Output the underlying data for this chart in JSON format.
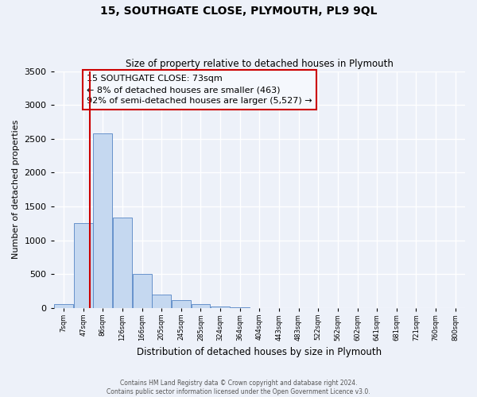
{
  "title": "15, SOUTHGATE CLOSE, PLYMOUTH, PL9 9QL",
  "subtitle": "Size of property relative to detached houses in Plymouth",
  "xlabel": "Distribution of detached houses by size in Plymouth",
  "ylabel": "Number of detached properties",
  "bin_labels": [
    "7sqm",
    "47sqm",
    "86sqm",
    "126sqm",
    "166sqm",
    "205sqm",
    "245sqm",
    "285sqm",
    "324sqm",
    "364sqm",
    "404sqm",
    "443sqm",
    "483sqm",
    "522sqm",
    "562sqm",
    "602sqm",
    "641sqm",
    "681sqm",
    "721sqm",
    "760sqm",
    "800sqm"
  ],
  "bar_heights": [
    55,
    1250,
    2580,
    1340,
    500,
    200,
    110,
    55,
    20,
    5,
    2,
    1,
    0,
    0,
    0,
    0,
    0,
    0,
    0,
    0,
    0
  ],
  "bar_color": "#c5d8f0",
  "bar_edgecolor": "#5585c5",
  "property_line_x": 1.85,
  "property_line_color": "#cc0000",
  "annotation_text": "15 SOUTHGATE CLOSE: 73sqm\n← 8% of detached houses are smaller (463)\n92% of semi-detached houses are larger (5,527) →",
  "annotation_box_edgecolor": "#cc0000",
  "annotation_box_facecolor": "#f5f8fd",
  "ylim": [
    0,
    3500
  ],
  "yticks": [
    0,
    500,
    1000,
    1500,
    2000,
    2500,
    3000,
    3500
  ],
  "footer_line1": "Contains HM Land Registry data © Crown copyright and database right 2024.",
  "footer_line2": "Contains public sector information licensed under the Open Government Licence v3.0.",
  "background_color": "#edf1f9",
  "grid_color": "#ffffff",
  "title_fontsize": 10,
  "subtitle_fontsize": 8.5
}
